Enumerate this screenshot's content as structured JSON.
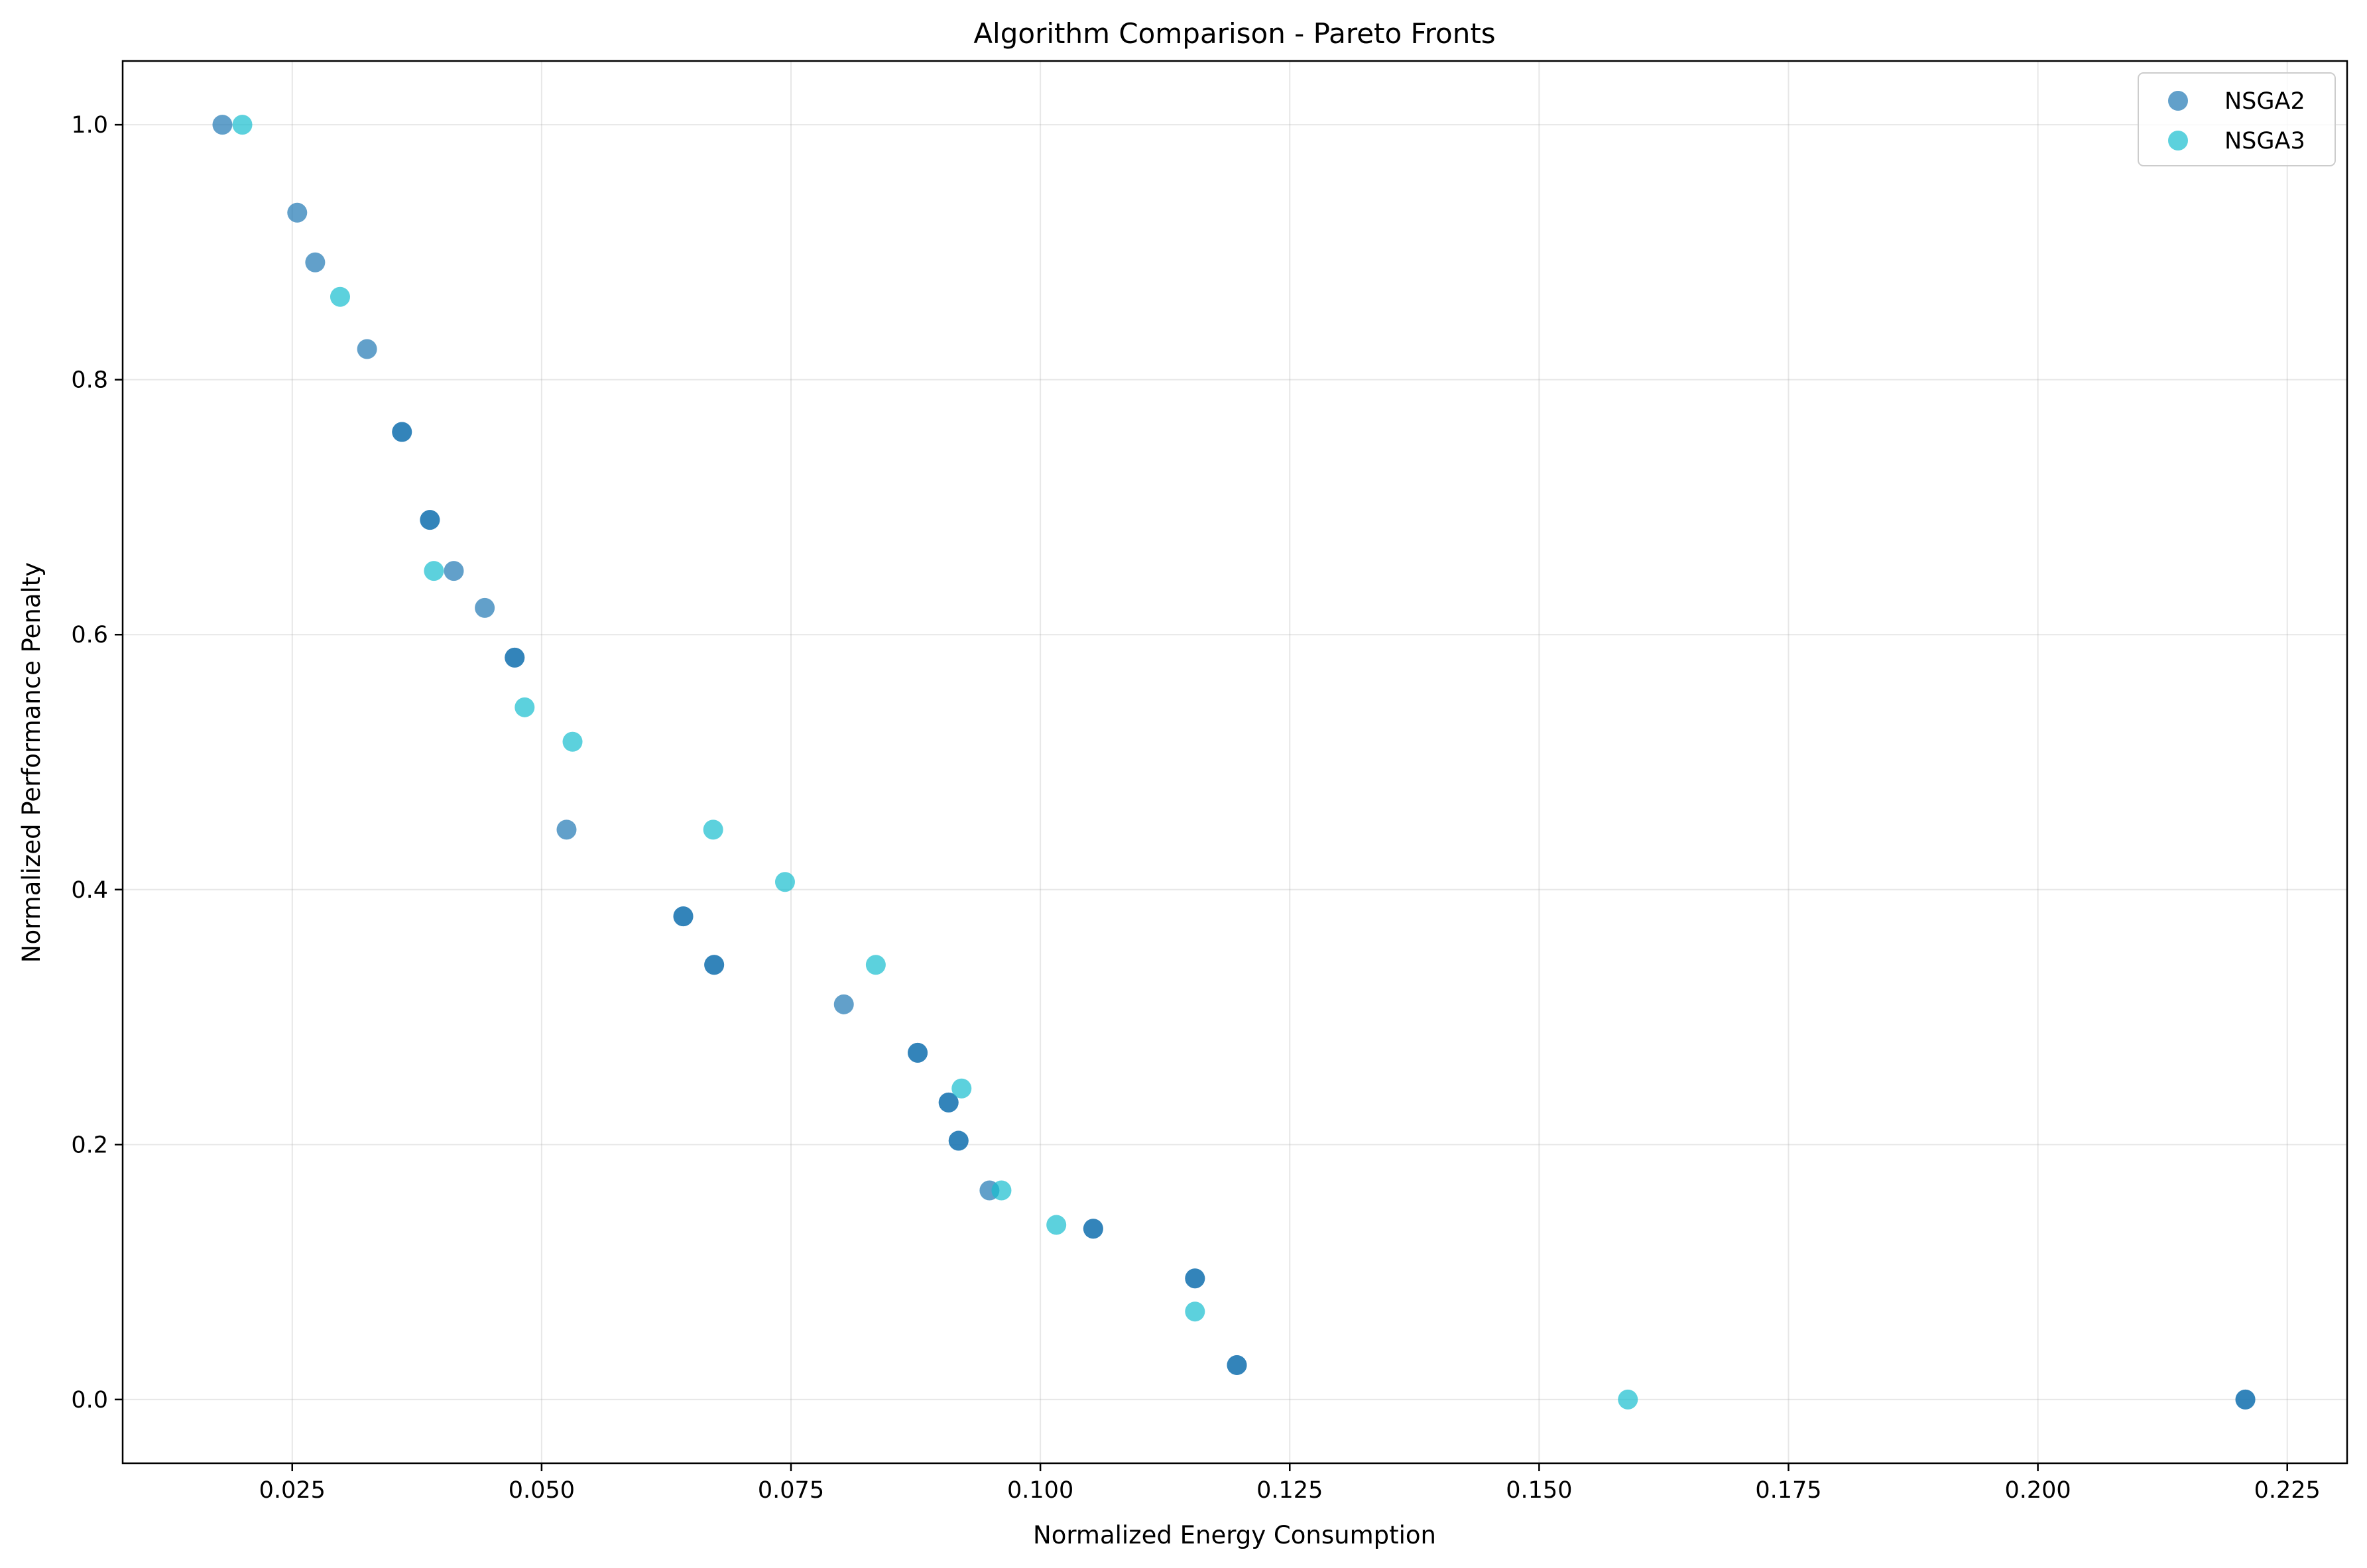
{
  "chart_data": {
    "type": "scatter",
    "title": "Algorithm Comparison - Pareto Fronts",
    "xlabel": "Normalized Energy Consumption",
    "ylabel": "Normalized Performance Penalty",
    "xlim": [
      0.008,
      0.231
    ],
    "ylim": [
      -0.05,
      1.05
    ],
    "xticks": [
      0.025,
      0.05,
      0.075,
      0.1,
      0.125,
      0.15,
      0.175,
      0.2,
      0.225
    ],
    "xtick_labels": [
      "0.025",
      "0.050",
      "0.075",
      "0.100",
      "0.125",
      "0.150",
      "0.175",
      "0.200",
      "0.225"
    ],
    "yticks": [
      0.0,
      0.2,
      0.4,
      0.6,
      0.8,
      1.0
    ],
    "ytick_labels": [
      "0.0",
      "0.2",
      "0.4",
      "0.6",
      "0.8",
      "1.0"
    ],
    "grid": true,
    "legend_position": "top-right",
    "series": [
      {
        "name": "NSGA2",
        "color": "#1f77b4",
        "points": [
          [
            0.018,
            1.0
          ],
          [
            0.0255,
            0.931
          ],
          [
            0.0273,
            0.892
          ],
          [
            0.0325,
            0.824
          ],
          [
            0.036,
            0.759
          ],
          [
            0.036,
            0.759
          ],
          [
            0.0388,
            0.69
          ],
          [
            0.0388,
            0.69
          ],
          [
            0.0412,
            0.65
          ],
          [
            0.0443,
            0.621
          ],
          [
            0.0473,
            0.582
          ],
          [
            0.0473,
            0.582
          ],
          [
            0.0525,
            0.447
          ],
          [
            0.0642,
            0.379
          ],
          [
            0.0642,
            0.379
          ],
          [
            0.0673,
            0.341
          ],
          [
            0.0673,
            0.341
          ],
          [
            0.0803,
            0.31
          ],
          [
            0.0877,
            0.272
          ],
          [
            0.0877,
            0.272
          ],
          [
            0.0908,
            0.233
          ],
          [
            0.0908,
            0.233
          ],
          [
            0.0918,
            0.203
          ],
          [
            0.0918,
            0.203
          ],
          [
            0.0949,
            0.164
          ],
          [
            0.1053,
            0.134
          ],
          [
            0.1053,
            0.134
          ],
          [
            0.1155,
            0.095
          ],
          [
            0.1155,
            0.095
          ],
          [
            0.1197,
            0.027
          ],
          [
            0.1197,
            0.027
          ],
          [
            0.2208,
            0.0
          ],
          [
            0.2208,
            0.0
          ]
        ]
      },
      {
        "name": "NSGA3",
        "color": "#17becf",
        "points": [
          [
            0.02,
            1.0
          ],
          [
            0.0298,
            0.865
          ],
          [
            0.0392,
            0.65
          ],
          [
            0.0483,
            0.543
          ],
          [
            0.0531,
            0.516
          ],
          [
            0.0672,
            0.447
          ],
          [
            0.0744,
            0.406
          ],
          [
            0.0835,
            0.341
          ],
          [
            0.0921,
            0.244
          ],
          [
            0.0961,
            0.164
          ],
          [
            0.1016,
            0.137
          ],
          [
            0.1155,
            0.069
          ],
          [
            0.1589,
            0.0
          ]
        ]
      }
    ]
  }
}
